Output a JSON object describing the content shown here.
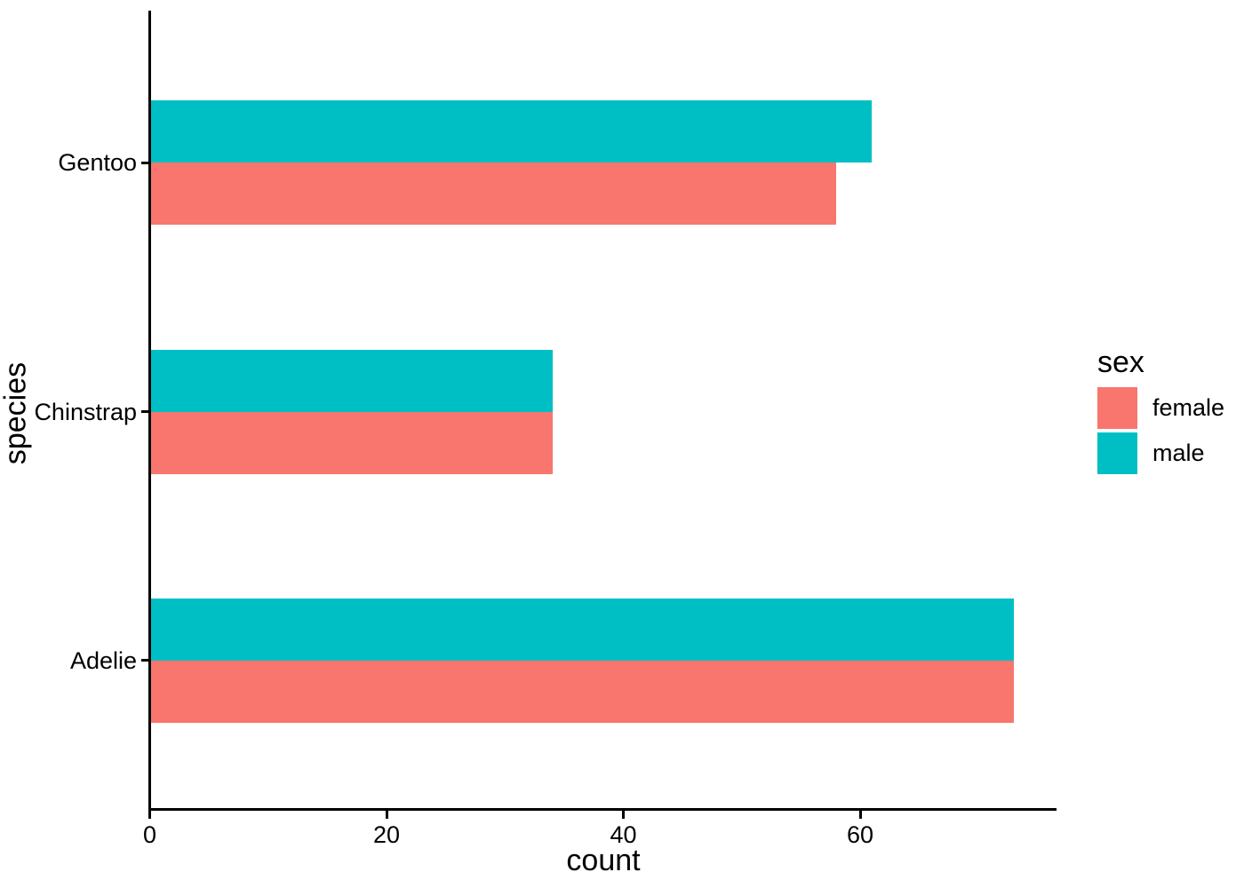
{
  "chart_data": {
    "type": "bar",
    "orientation": "horizontal",
    "title": "",
    "xlabel": "count",
    "ylabel": "species",
    "categories": [
      "Adelie",
      "Chinstrap",
      "Gentoo"
    ],
    "series": [
      {
        "name": "female",
        "color": "#F8766D",
        "values": [
          73,
          34,
          58
        ]
      },
      {
        "name": "male",
        "color": "#00BFC4",
        "values": [
          73,
          34,
          61
        ]
      }
    ],
    "x_ticks": [
      {
        "value": 0,
        "label": "0"
      },
      {
        "value": 20,
        "label": "20"
      },
      {
        "value": 40,
        "label": "40"
      },
      {
        "value": 60,
        "label": "60"
      }
    ],
    "xlim": [
      0,
      76.6
    ],
    "grid": false,
    "legend_title": "sex",
    "legend_position": "right",
    "axis_color": "#000000",
    "text_color": "#000000",
    "background": "#FFFFFF"
  }
}
